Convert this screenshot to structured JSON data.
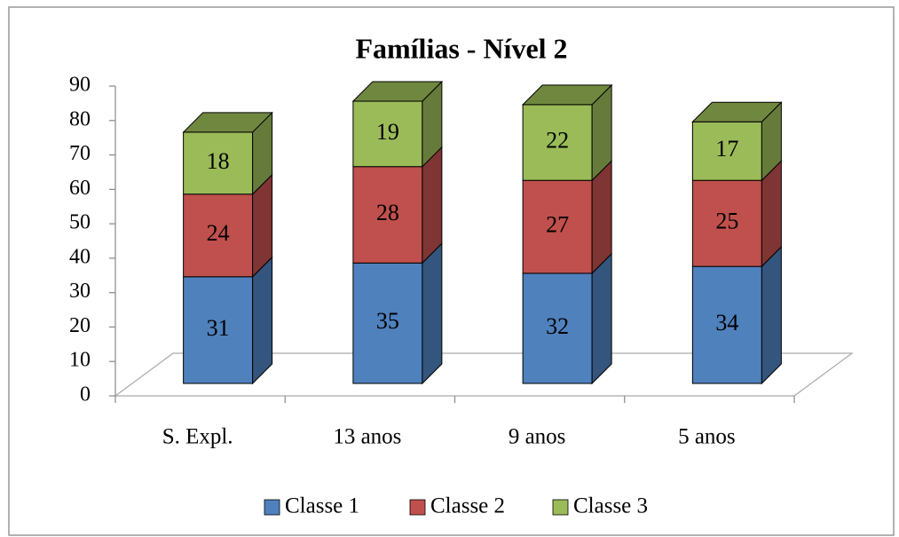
{
  "chart_data": {
    "type": "bar3d_stacked",
    "title": "Famílias - Nível 2",
    "categories": [
      "S. Expl.",
      "13 anos",
      "9 anos",
      "5 anos"
    ],
    "series": [
      {
        "name": "Classe 1",
        "color": "#4f81bd",
        "values": [
          31,
          35,
          32,
          34
        ]
      },
      {
        "name": "Classe 2",
        "color": "#c0504d",
        "values": [
          24,
          28,
          27,
          25
        ]
      },
      {
        "name": "Classe 3",
        "color": "#9bbb59",
        "values": [
          18,
          19,
          22,
          17
        ]
      }
    ],
    "ylim": [
      0,
      90
    ],
    "yticks": [
      0,
      10,
      20,
      30,
      40,
      50,
      60,
      70,
      80,
      90
    ],
    "legend": "bottom"
  }
}
